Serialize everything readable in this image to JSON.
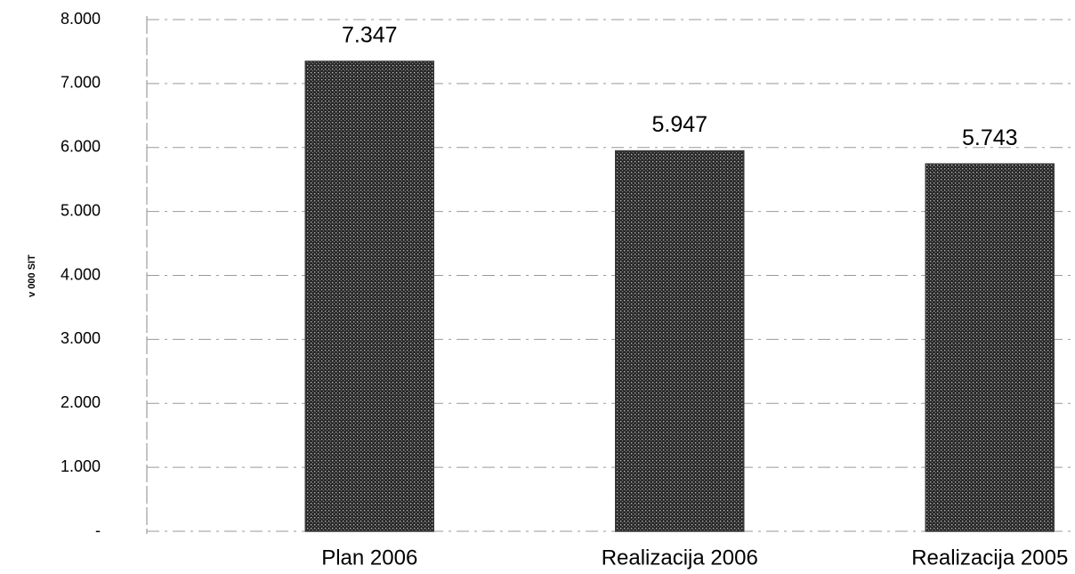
{
  "chart_data": {
    "type": "bar",
    "y_axis_label": "v 000 SIT",
    "categories": [
      "Plan 2006",
      "Realizacija 2006",
      "Realizacija 2005"
    ],
    "values": [
      7347,
      5947,
      5743
    ],
    "value_labels": [
      "7.347",
      "5.947",
      "5.743"
    ],
    "color": "#3a3a3a",
    "ylim": [
      0,
      8000
    ],
    "yticks": [
      {
        "value": 0,
        "label": "-"
      },
      {
        "value": 1000,
        "label": "1.000"
      },
      {
        "value": 2000,
        "label": "2.000"
      },
      {
        "value": 3000,
        "label": "3.000"
      },
      {
        "value": 4000,
        "label": "4.000"
      },
      {
        "value": 5000,
        "label": "5.000"
      },
      {
        "value": 6000,
        "label": "6.000"
      },
      {
        "value": 7000,
        "label": "7.000"
      },
      {
        "value": 8000,
        "label": "8.000"
      }
    ],
    "grid": true
  }
}
